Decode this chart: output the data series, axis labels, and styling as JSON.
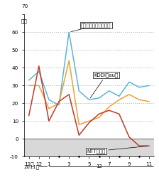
{
  "ylim": [
    -10,
    70
  ],
  "yticks": [
    -10,
    0,
    10,
    20,
    30,
    40,
    50,
    60,
    70
  ],
  "x_tick_positions": [
    0,
    1,
    2,
    4,
    6,
    8,
    10,
    12
  ],
  "x_labels": [
    "11月",
    "12",
    "1",
    "3",
    "5",
    "7",
    "9",
    "11"
  ],
  "x_all": [
    0,
    1,
    2,
    3,
    4,
    5,
    6,
    7,
    8,
    9,
    10,
    11,
    12
  ],
  "softbank": [
    33,
    38,
    22,
    19,
    60,
    27,
    22,
    23,
    27,
    24,
    32,
    29,
    30
  ],
  "kddi": [
    30,
    30,
    17,
    20,
    44,
    8,
    10,
    12,
    18,
    22,
    25,
    22,
    21
  ],
  "docomo": [
    13,
    41,
    10,
    21,
    25,
    2,
    9,
    14,
    16,
    14,
    1,
    -4,
    -4
  ],
  "softbank_color": "#5bb5d5",
  "kddi_color": "#f0a030",
  "docomo_color": "#c0392b",
  "background_below_zero": "#d8d8d8",
  "grid_color": "#aaaaaa",
  "label_softbank": "ソフトバンクモバイル",
  "label_kddi": "KDDI（au）",
  "label_docomo": "NTTドコモ",
  "year_label_2011": "2011年",
  "year_label_12": "12",
  "figsize": [
    2.24,
    2.56
  ],
  "dpi": 100
}
